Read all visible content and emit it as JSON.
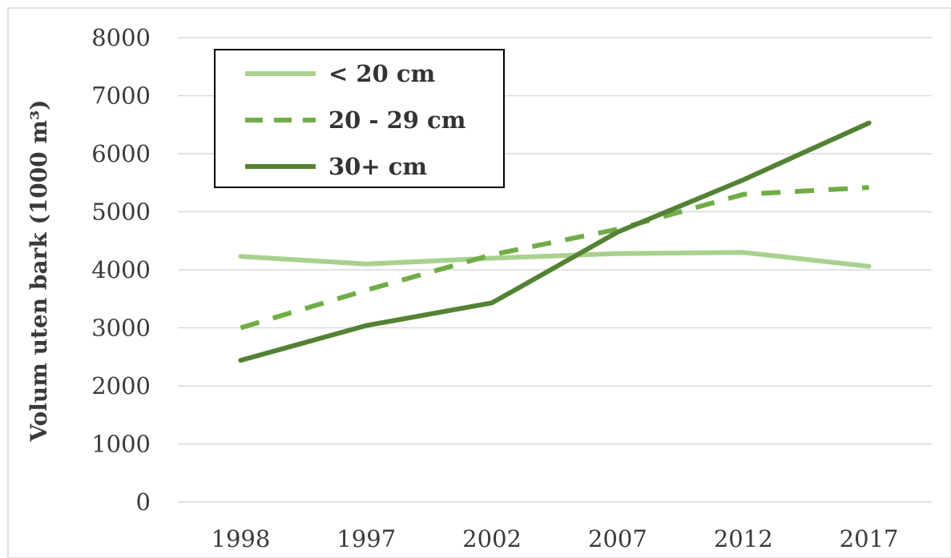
{
  "chart_data": {
    "type": "line",
    "title": "",
    "xlabel": "",
    "ylabel": "Volum uten bark (1000 m³)",
    "categories": [
      "1998",
      "1997",
      "2002",
      "2007",
      "2012",
      "2017"
    ],
    "ylim": [
      0,
      8000
    ],
    "yticks": [
      0,
      1000,
      2000,
      3000,
      4000,
      5000,
      6000,
      7000,
      8000
    ],
    "grid": true,
    "legend_position": "top-left",
    "series": [
      {
        "name": "< 20 cm",
        "values": [
          4230,
          4100,
          4200,
          4280,
          4300,
          4060
        ],
        "color": "#a9d18e",
        "style": "solid"
      },
      {
        "name": "20 - 29 cm",
        "values": [
          3000,
          3650,
          4260,
          4700,
          5300,
          5420
        ],
        "color": "#70ad47",
        "style": "dashed"
      },
      {
        "name": "30+ cm",
        "values": [
          2440,
          3040,
          3430,
          4650,
          5550,
          6530
        ],
        "color": "#548235",
        "style": "solid"
      }
    ]
  }
}
